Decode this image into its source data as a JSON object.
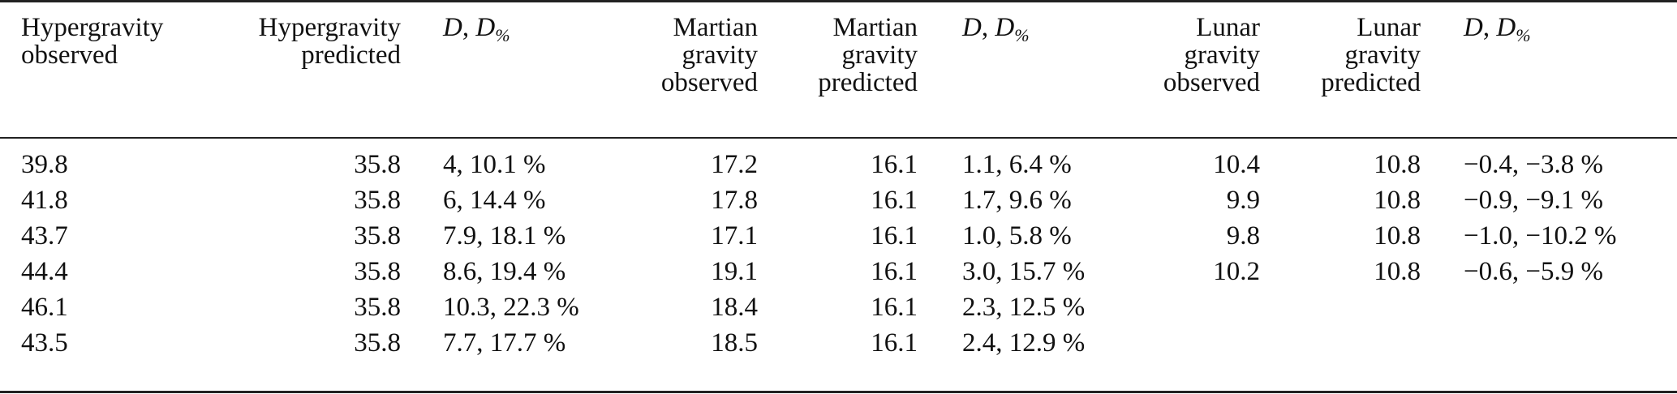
{
  "headers": [
    [
      "Hypergravity",
      "observed"
    ],
    [
      "Hypergravity",
      "predicted"
    ],
    [
      "D, D%"
    ],
    [
      "Martian",
      "gravity",
      "observed"
    ],
    [
      "Martian",
      "gravity",
      "predicted"
    ],
    [
      "D, D%"
    ],
    [
      "Lunar",
      "gravity",
      "observed"
    ],
    [
      "Lunar",
      "gravity",
      "predicted"
    ],
    [
      "D, D%"
    ]
  ],
  "rows": [
    [
      "39.8",
      "35.8",
      "4, 10.1 %",
      "17.2",
      "16.1",
      "1.1, 6.4 %",
      "10.4",
      "10.8",
      "−0.4, −3.8 %"
    ],
    [
      "41.8",
      "35.8",
      "6, 14.4 %",
      "17.8",
      "16.1",
      "1.7, 9.6 %",
      "9.9",
      "10.8",
      "−0.9, −9.1 %"
    ],
    [
      "43.7",
      "35.8",
      "7.9, 18.1 %",
      "17.1",
      "16.1",
      "1.0, 5.8 %",
      "9.8",
      "10.8",
      "−1.0, −10.2 %"
    ],
    [
      "44.4",
      "35.8",
      "8.6, 19.4 %",
      "19.1",
      "16.1",
      "3.0, 15.7 %",
      "10.2",
      "10.8",
      "−0.6, −5.9 %"
    ],
    [
      "46.1",
      "35.8",
      "10.3, 22.3 %",
      "18.4",
      "16.1",
      "2.3, 12.5 %",
      "",
      "",
      ""
    ],
    [
      "43.5",
      "35.8",
      "7.7, 17.7 %",
      "18.5",
      "16.1",
      "2.4, 12.9 %",
      "",
      "",
      ""
    ]
  ]
}
